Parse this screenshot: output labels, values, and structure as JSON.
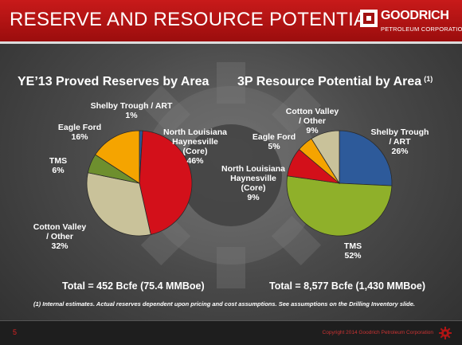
{
  "slide": {
    "title": "RESERVE AND RESOURCE POTENTIAL",
    "logo_name": "GOODRICH",
    "logo_sub": "PETROLEUM CORPORATION",
    "page_number": "5",
    "copyright": "Copyright 2014 Goodrich Petroleum Corporation",
    "footnote": "(1) Internal estimates.  Actual reserves dependent upon pricing and cost assumptions.  See assumptions  on the Drilling Inventory slide."
  },
  "chart_data": [
    {
      "type": "pie",
      "title": "YE’13 Proved Reserves by Area",
      "title_note": "",
      "total": "Total = 452 Bcfe (75.4 MMBoe)",
      "slices": [
        {
          "name": "Shelby Trough / ART",
          "value": 1,
          "label": "1%",
          "color": "#2d5a9a",
          "label_lines": [
            "Shelby Trough / ART",
            "1%"
          ]
        },
        {
          "name": "North Louisiana Haynesville (Core)",
          "value": 46,
          "label": "46%",
          "color": "#d3101a",
          "label_lines": [
            "North Louisiana",
            "Haynesville",
            "(Core)",
            "46%"
          ]
        },
        {
          "name": "Cotton Valley / Other",
          "value": 32,
          "label": "32%",
          "color": "#c9c29a",
          "label_lines": [
            "Cotton Valley",
            "/ Other",
            "32%"
          ]
        },
        {
          "name": "TMS",
          "value": 6,
          "label": "6%",
          "color": "#6e8f2e",
          "label_lines": [
            "TMS",
            "6%"
          ]
        },
        {
          "name": "Eagle Ford",
          "value": 16,
          "label": "16%",
          "color": "#f5a400",
          "label_lines": [
            "Eagle Ford",
            "16%"
          ]
        }
      ]
    },
    {
      "type": "pie",
      "title": "3P Resource Potential by Area",
      "title_note": "(1)",
      "total": "Total = 8,577 Bcfe (1,430 MMBoe)",
      "slices": [
        {
          "name": "Shelby Trough / ART",
          "value": 26,
          "label": "26%",
          "color": "#2d5a9a",
          "label_lines": [
            "Shelby Trough",
            "/ ART",
            "26%"
          ]
        },
        {
          "name": "TMS",
          "value": 52,
          "label": "52%",
          "color": "#8fb02a",
          "label_lines": [
            "TMS",
            "52%"
          ]
        },
        {
          "name": "North Louisiana Haynesville (Core)",
          "value": 9,
          "label": "9%",
          "color": "#d3101a",
          "label_lines": [
            "North Louisiana",
            "Haynesville",
            "(Core)",
            "9%"
          ]
        },
        {
          "name": "Eagle Ford",
          "value": 5,
          "label": "5%",
          "color": "#f5a400",
          "label_lines": [
            "Eagle Ford",
            "5%"
          ]
        },
        {
          "name": "Cotton Valley / Other",
          "value": 9,
          "label": "9%",
          "color": "#c9c29a",
          "label_lines": [
            "Cotton Valley",
            "/ Other",
            "9%"
          ]
        }
      ]
    }
  ]
}
